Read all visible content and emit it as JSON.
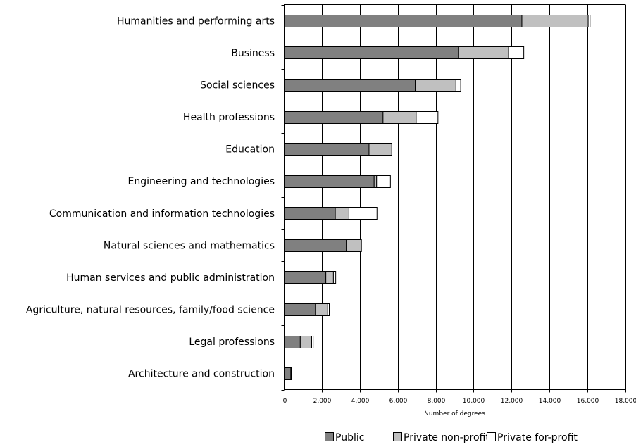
{
  "chart_data": {
    "type": "bar",
    "orientation": "horizontal",
    "stacked": true,
    "categories": [
      "Humanities and performing arts",
      "Business",
      "Social sciences",
      "Health professions",
      "Education",
      "Engineering and technologies",
      "Communication and information technologies",
      "Natural sciences and mathematics",
      "Human services and public administration",
      "Agriculture, natural resources, family/food science",
      "Legal professions",
      "Architecture and construction"
    ],
    "series": [
      {
        "name": "Public",
        "color": "#808080",
        "values": [
          12550,
          9200,
          6920,
          5220,
          4480,
          4750,
          2700,
          3280,
          2200,
          1650,
          850,
          350
        ]
      },
      {
        "name": "Private non-profit",
        "color": "#c0c0c0",
        "values": [
          3500,
          2650,
          2150,
          1750,
          1200,
          130,
          720,
          800,
          400,
          650,
          600,
          20
        ]
      },
      {
        "name": "Private for-profit",
        "color": "#ffffff",
        "values": [
          100,
          800,
          250,
          1150,
          0,
          730,
          1480,
          0,
          120,
          80,
          80,
          10
        ]
      }
    ],
    "xlabel": "Number of degrees",
    "ylabel": "",
    "xlim": [
      0,
      18000
    ],
    "xticks": [
      0,
      2000,
      4000,
      6000,
      8000,
      10000,
      12000,
      14000,
      16000,
      18000
    ],
    "xtick_labels": [
      "0",
      "2,000",
      "4,000",
      "6,000",
      "8,000",
      "10,000",
      "12,000",
      "14,000",
      "16,000",
      "18,000"
    ],
    "grid": "vertical",
    "legend_position": "bottom-right"
  }
}
